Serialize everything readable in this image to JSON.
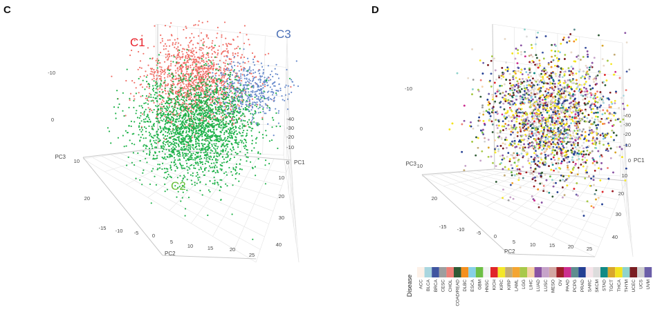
{
  "panels": {
    "left_letter": "C",
    "right_letter": "D"
  },
  "chart_data": [
    {
      "type": "scatter",
      "dimension": "3d",
      "panel": "C",
      "axes": {
        "x": {
          "title": "PC1",
          "ticks": [
            "-40",
            "-30",
            "-20",
            "-10",
            "0",
            "10",
            "20",
            "30",
            "40"
          ]
        },
        "y": {
          "title": "PC2",
          "ticks": [
            "-15",
            "-10",
            "-5",
            "0",
            "5",
            "10",
            "15",
            "20",
            "25"
          ]
        },
        "z": {
          "title": "PC3",
          "ticks": [
            "-10",
            "0",
            "10",
            "20"
          ]
        }
      },
      "grid": true,
      "series": [
        {
          "name": "C1",
          "color": "#f07068",
          "approx_center": {
            "PC1": -15,
            "PC2": 8,
            "PC3": 12
          }
        },
        {
          "name": "C2",
          "color": "#1fb24a",
          "approx_center": {
            "PC1": 0,
            "PC2": 8,
            "PC3": 2
          }
        },
        {
          "name": "C3",
          "color": "#6a8ccc",
          "approx_center": {
            "PC1": -30,
            "PC2": 18,
            "PC3": 14
          }
        }
      ],
      "label_colors": {
        "C1": "#e8202a",
        "C2": "#6abf3a",
        "C3": "#4a6fb5"
      }
    },
    {
      "type": "scatter",
      "dimension": "3d",
      "panel": "D",
      "axes": {
        "x": {
          "title": "PC1",
          "ticks": [
            "-40",
            "-30",
            "-20",
            "-10",
            "0",
            "10",
            "20",
            "30",
            "40"
          ]
        },
        "y": {
          "title": "PC2",
          "ticks": [
            "-15",
            "-10",
            "-5",
            "0",
            "5",
            "10",
            "15",
            "20",
            "25"
          ]
        },
        "z": {
          "title": "PC3",
          "ticks": [
            "-10",
            "0",
            "10",
            "20"
          ]
        }
      },
      "grid": true,
      "legend": {
        "title": "Disease",
        "placement": "bottom",
        "entries": [
          {
            "name": "ACC",
            "color": "#fdf1e8"
          },
          {
            "name": "BLCA",
            "color": "#a9d6df"
          },
          {
            "name": "BRCA",
            "color": "#3f55a0"
          },
          {
            "name": "CESC",
            "color": "#9e9e9e"
          },
          {
            "name": "CHOL",
            "color": "#ee7f77"
          },
          {
            "name": "COAD/READ",
            "color": "#2f5a35"
          },
          {
            "name": "DLBC",
            "color": "#f4901e"
          },
          {
            "name": "ESCA",
            "color": "#86d0e6"
          },
          {
            "name": "GBM",
            "color": "#6dbf45"
          },
          {
            "name": "HNSC",
            "color": "#f2f2f2"
          },
          {
            "name": "KICH",
            "color": "#e0262a"
          },
          {
            "name": "KIRC",
            "color": "#f5e829"
          },
          {
            "name": "KIRP",
            "color": "#c3ab75"
          },
          {
            "name": "LAML",
            "color": "#f4a531"
          },
          {
            "name": "LGG",
            "color": "#a8c94a"
          },
          {
            "name": "LIHC",
            "color": "#f6d2a8"
          },
          {
            "name": "LUAD",
            "color": "#8a54a3"
          },
          {
            "name": "LUSC",
            "color": "#c6a3c9"
          },
          {
            "name": "MESO",
            "color": "#d3a6a2"
          },
          {
            "name": "OV",
            "color": "#9e1f28"
          },
          {
            "name": "PAAD",
            "color": "#cc2e8f"
          },
          {
            "name": "PCPG",
            "color": "#5e8d8f"
          },
          {
            "name": "PRAD",
            "color": "#243f93"
          },
          {
            "name": "SARC",
            "color": "#f6e4ea"
          },
          {
            "name": "SKCM",
            "color": "#dcdcdc"
          },
          {
            "name": "STAD",
            "color": "#128a85"
          },
          {
            "name": "TGCT",
            "color": "#d9a62b"
          },
          {
            "name": "THCA",
            "color": "#f3e31e"
          },
          {
            "name": "THYM",
            "color": "#8fd3cc"
          },
          {
            "name": "UCEC",
            "color": "#7a1e22"
          },
          {
            "name": "UCS",
            "color": "#d0d0d0"
          },
          {
            "name": "UVM",
            "color": "#6b5fa8"
          }
        ]
      }
    }
  ]
}
